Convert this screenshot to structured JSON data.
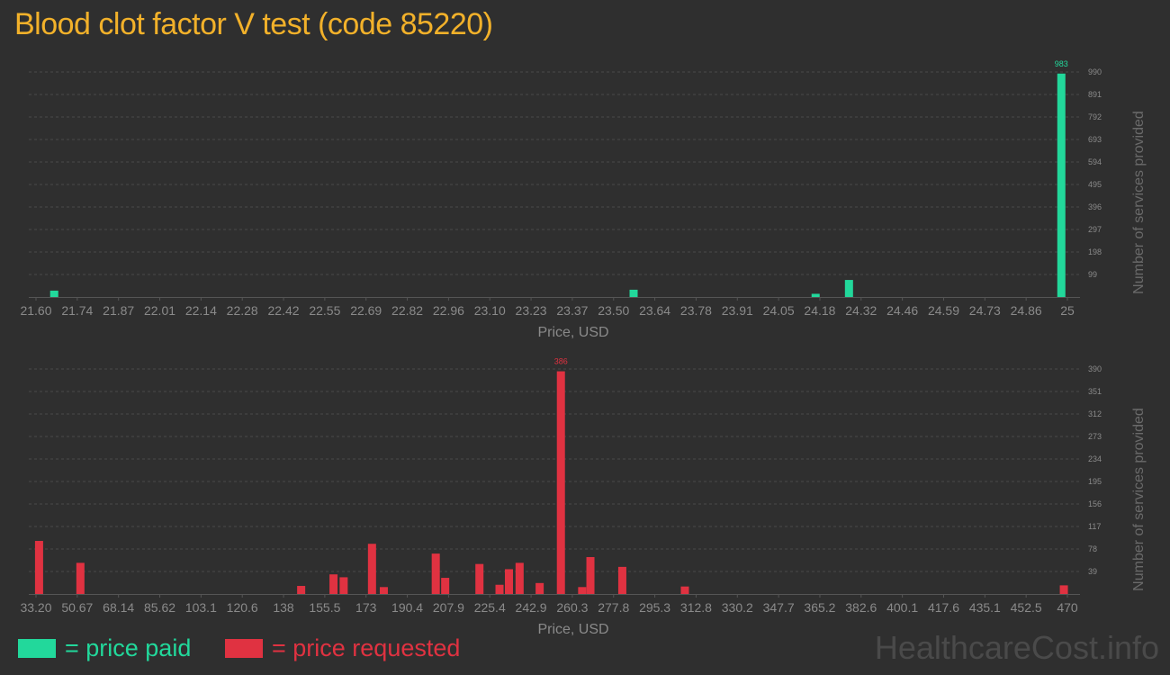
{
  "title": "Blood clot factor V test (code 85220)",
  "legend": {
    "paid_label": "= price paid",
    "requested_label": "= price requested"
  },
  "watermark": "HealthcareCost.info",
  "colors": {
    "background": "#2f2f2f",
    "paid": "#22d89b",
    "requested": "#e03241",
    "title": "#f2b12a",
    "axis_text": "#8a8a8a",
    "grid": "#484848"
  },
  "chart_data": [
    {
      "type": "bar",
      "series_key": "paid",
      "xlabel": "Price, USD",
      "ylabel": "Number of services provided",
      "x_ticks": [
        "21.60",
        "21.74",
        "21.87",
        "22.01",
        "22.14",
        "22.28",
        "22.42",
        "22.55",
        "22.69",
        "22.82",
        "22.96",
        "23.10",
        "23.23",
        "23.37",
        "23.50",
        "23.64",
        "23.78",
        "23.91",
        "24.05",
        "24.18",
        "24.32",
        "24.46",
        "24.59",
        "24.73",
        "24.86",
        "25"
      ],
      "y_ticks": [
        "99",
        "198",
        "297",
        "396",
        "495",
        "594",
        "693",
        "792",
        "891",
        "990"
      ],
      "ylim": [
        0,
        990
      ],
      "xlim": [
        21.6,
        25.0
      ],
      "bars": [
        {
          "x": 21.66,
          "value": 28
        },
        {
          "x": 23.57,
          "value": 32
        },
        {
          "x": 24.17,
          "value": 14
        },
        {
          "x": 24.28,
          "value": 75
        },
        {
          "x": 24.98,
          "value": 983
        }
      ],
      "peak_label": "983"
    },
    {
      "type": "bar",
      "series_key": "requested",
      "xlabel": "Price, USD",
      "ylabel": "Number of services provided",
      "x_ticks": [
        "33.20",
        "50.67",
        "68.14",
        "85.62",
        "103.1",
        "120.6",
        "138",
        "155.5",
        "173",
        "190.4",
        "207.9",
        "225.4",
        "242.9",
        "260.3",
        "277.8",
        "295.3",
        "312.8",
        "330.2",
        "347.7",
        "365.2",
        "382.6",
        "400.1",
        "417.6",
        "435.1",
        "452.5",
        "470"
      ],
      "y_ticks": [
        "39",
        "78",
        "117",
        "156",
        "195",
        "234",
        "273",
        "312",
        "351",
        "390"
      ],
      "ylim": [
        0,
        390
      ],
      "xlim": [
        33.2,
        470.0
      ],
      "bars": [
        {
          "x": 34.5,
          "value": 92
        },
        {
          "x": 52.0,
          "value": 54
        },
        {
          "x": 145.5,
          "value": 14
        },
        {
          "x": 159.2,
          "value": 34
        },
        {
          "x": 163.5,
          "value": 29
        },
        {
          "x": 175.5,
          "value": 87
        },
        {
          "x": 180.5,
          "value": 12
        },
        {
          "x": 202.5,
          "value": 70
        },
        {
          "x": 206.5,
          "value": 28
        },
        {
          "x": 221.0,
          "value": 52
        },
        {
          "x": 229.5,
          "value": 16
        },
        {
          "x": 233.5,
          "value": 43
        },
        {
          "x": 238.0,
          "value": 54
        },
        {
          "x": 246.5,
          "value": 19
        },
        {
          "x": 255.5,
          "value": 386
        },
        {
          "x": 264.5,
          "value": 12
        },
        {
          "x": 268.0,
          "value": 64
        },
        {
          "x": 281.5,
          "value": 47
        },
        {
          "x": 308.0,
          "value": 13
        },
        {
          "x": 468.5,
          "value": 15
        }
      ],
      "peak_label": "386"
    }
  ]
}
